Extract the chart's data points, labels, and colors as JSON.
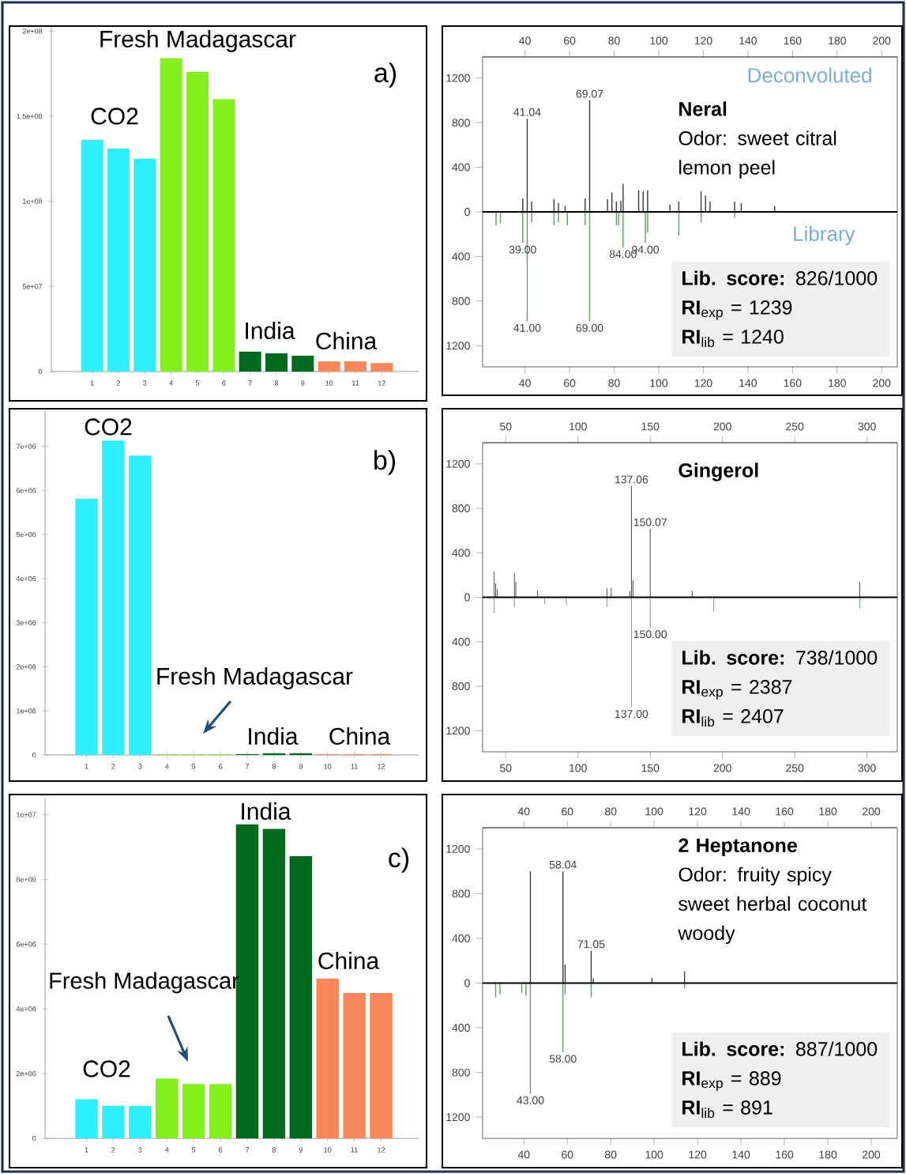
{
  "chart_data": [
    {
      "type": "bar",
      "categories": [
        "1",
        "2",
        "3",
        "4",
        "5",
        "6",
        "7",
        "8",
        "9",
        "10",
        "11",
        "12"
      ],
      "values": [
        136000000,
        131000000,
        125000000,
        184000000,
        176000000,
        160000000,
        11700000,
        10700000,
        9300000,
        6000000,
        6000000,
        5000000
      ],
      "colors": [
        "#2ef0ff",
        "#2ef0ff",
        "#2ef0ff",
        "#84f01e",
        "#84f01e",
        "#84f01e",
        "#006a1e",
        "#006a1e",
        "#006a1e",
        "#f9875a",
        "#f9875a",
        "#f9875a"
      ],
      "ylim": [
        0,
        202000000
      ],
      "yticks": [
        0,
        {
          "value": 50000000,
          "label": "5e+07"
        },
        {
          "value": 100000000,
          "label": "1e+08"
        },
        {
          "value": 150000000,
          "label": "1.5e+08"
        },
        {
          "value": 200000000,
          "label": "2e+08"
        }
      ],
      "annotations": [
        "Fresh Madagascar",
        "CO2",
        "India",
        "China",
        "a)"
      ]
    },
    {
      "type": "bar",
      "series": [
        {
          "color": "#3a3a3a",
          "x": [
            39,
            41,
            43,
            53,
            55,
            58,
            67,
            69,
            77,
            79,
            81,
            83,
            84,
            91,
            93,
            95,
            105,
            109,
            119,
            121,
            123,
            134,
            137,
            152
          ],
          "values": [
            120,
            836,
            93,
            114,
            80,
            53,
            120,
            1000,
            114,
            173,
            93,
            100,
            252,
            194,
            186,
            194,
            66,
            93,
            186,
            146,
            93,
            93,
            80,
            53
          ]
        },
        {
          "color": "#5e9e5e",
          "x": [
            27,
            29,
            39,
            41,
            43,
            53,
            55,
            59,
            67,
            69,
            81,
            82,
            84,
            94,
            95,
            109,
            119,
            134
          ],
          "values": [
            -120,
            -100,
            -279,
            -982,
            -93,
            -120,
            -93,
            -120,
            -120,
            -982,
            -120,
            -120,
            -319,
            -279,
            -186,
            -212,
            -93,
            -53
          ]
        }
      ],
      "xlim": [
        21,
        207
      ],
      "xticks": [
        40,
        60,
        80,
        100,
        120,
        140,
        160,
        180,
        200
      ],
      "x2lim": [
        21,
        207
      ],
      "x2ticks": [
        40,
        60,
        80,
        100,
        120,
        140,
        160,
        180,
        200
      ],
      "ylim": [
        -1390,
        1390
      ],
      "yticks": [
        {
          "value": -1200,
          "label": "1200"
        },
        {
          "value": -800,
          "label": "800"
        },
        {
          "value": -400,
          "label": "400"
        },
        0,
        400,
        800,
        1200
      ],
      "ref_lines": [
        {
          "axis": "y",
          "value": 0,
          "color": "#000000"
        }
      ],
      "annotations": [
        {
          "text": "41.04",
          "x": 41,
          "y": 836
        },
        {
          "text": "69.07",
          "x": 69,
          "y": 1000
        },
        {
          "text": "39.00",
          "x": 39,
          "y": -279
        },
        {
          "text": "84.00",
          "x": 84,
          "y": -319
        },
        {
          "text": "94.00",
          "x": 94,
          "y": -279
        },
        {
          "text": "41.00",
          "x": 41,
          "y": -982
        },
        {
          "text": "69.00",
          "x": 69,
          "y": -982
        },
        "Deconvoluted",
        "Library",
        "Neral",
        "Odor: sweet citral lemon peel",
        "**Lib. score:** 826/1000",
        "**RI**$_{exp}$ = 1239",
        "**RI**$_{lib}$ = 1240"
      ]
    },
    {
      "type": "bar",
      "categories": [
        "1",
        "2",
        "3",
        "4",
        "5",
        "6",
        "7",
        "8",
        "9",
        "10",
        "11",
        "12"
      ],
      "values": [
        5810000,
        7130000,
        6790000,
        20000,
        20000,
        20000,
        20000,
        40000,
        40000,
        20000,
        20000,
        20000
      ],
      "colors": [
        "#2ef0ff",
        "#2ef0ff",
        "#2ef0ff",
        "#84f01e",
        "#84f01e",
        "#84f01e",
        "#006a1e",
        "#006a1e",
        "#006a1e",
        "#f9875a",
        "#f9875a",
        "#f9875a"
      ],
      "ylim": [
        0,
        7800000
      ],
      "yticks": [
        0,
        {
          "value": 1000000,
          "label": "1e+06"
        },
        {
          "value": 2000000,
          "label": "2e+06"
        },
        {
          "value": 3000000,
          "label": "3e+06"
        },
        {
          "value": 4000000,
          "label": "4e+06"
        },
        {
          "value": 5000000,
          "label": "5e+06"
        },
        {
          "value": 6000000,
          "label": "6e+06"
        },
        {
          "value": 7000000,
          "label": "7e+06"
        }
      ],
      "annotations": [
        "CO2",
        "Fresh Madagascar",
        "India",
        "China",
        "b)"
      ]
    },
    {
      "type": "bar",
      "series": [
        {
          "color": "#3a3a3a",
          "x": [
            42,
            43,
            44,
            56,
            57,
            72,
            120,
            123,
            136,
            137,
            138,
            150,
            151,
            179,
            295
          ],
          "values": [
            231,
            125,
            72,
            218,
            138,
            58,
            80,
            85,
            58,
            1000,
            151,
            616,
            null,
            58,
            138
          ]
        },
        {
          "color": "#5e9e5e",
          "x": [
            42,
            56,
            77,
            92,
            120,
            122,
            137,
            150,
            194,
            295
          ],
          "values": [
            -141,
            -88,
            -61,
            -69,
            -88,
            null,
            -990,
            -273,
            -127,
            -101
          ]
        }
      ],
      "xlim": [
        34,
        321
      ],
      "xticks": [
        50,
        100,
        150,
        200,
        250,
        300
      ],
      "x2lim": [
        34,
        321
      ],
      "x2ticks": [
        50,
        100,
        150,
        200,
        250,
        300
      ],
      "ylim": [
        -1390,
        1390
      ],
      "yticks": [
        {
          "value": -1200,
          "label": "1200"
        },
        {
          "value": -800,
          "label": "800"
        },
        {
          "value": -400,
          "label": "400"
        },
        0,
        400,
        800,
        1200
      ],
      "ref_lines": [
        {
          "axis": "y",
          "value": 0,
          "color": "#000000"
        }
      ],
      "annotations": [
        {
          "text": "137.06",
          "x": 137,
          "y": 1000
        },
        {
          "text": "150.07",
          "x": 150,
          "y": 616
        },
        {
          "text": "150.00",
          "x": 150,
          "y": -273
        },
        {
          "text": "137.00",
          "x": 137,
          "y": -990
        },
        "Gingerol",
        "**Lib. score:** 738/1000",
        "**RI**$_{exp}$ = 2387",
        "**RI**$_{lib}$ = 2407"
      ]
    },
    {
      "type": "bar",
      "categories": [
        "1",
        "2",
        "3",
        "4",
        "5",
        "6",
        "7",
        "8",
        "9",
        "10",
        "11",
        "12"
      ],
      "values": [
        1210000,
        1010000,
        1000000,
        1850000,
        1680000,
        1680000,
        9700000,
        9560000,
        8720000,
        4940000,
        4490000,
        4490000
      ],
      "colors": [
        "#2ef0ff",
        "#2ef0ff",
        "#2ef0ff",
        "#84f01e",
        "#84f01e",
        "#84f01e",
        "#006a1e",
        "#006a1e",
        "#006a1e",
        "#f9875a",
        "#f9875a",
        "#f9875a"
      ],
      "ylim": [
        0,
        10500000
      ],
      "yticks": [
        0,
        {
          "value": 2000000,
          "label": "2e+06"
        },
        {
          "value": 4000000,
          "label": "4e+06"
        },
        {
          "value": 6000000,
          "label": "6e+06"
        },
        {
          "value": 8000000,
          "label": "8e+06"
        },
        {
          "value": 10000000,
          "label": "1e+07"
        }
      ],
      "annotations": [
        "India",
        "China",
        "Fresh Madagascar",
        "CO2",
        "c)"
      ]
    },
    {
      "type": "bar",
      "series": [
        {
          "color": "#3a3a3a",
          "x": [
            43,
            58,
            59,
            71,
            72,
            99,
            114
          ],
          "values": [
            1000,
            1000,
            165,
            289,
            45,
            45,
            104
          ]
        },
        {
          "color": "#5e9e5e",
          "x": [
            27,
            29,
            39,
            41,
            43,
            55,
            58,
            59,
            71,
            114
          ],
          "values": [
            -127,
            -101,
            -88,
            -114,
            -990,
            null,
            -619,
            -101,
            -127,
            -48
          ]
        }
      ],
      "xlim": [
        21,
        212
      ],
      "xticks": [
        40,
        60,
        80,
        100,
        120,
        140,
        160,
        180,
        200
      ],
      "x2lim": [
        21,
        212
      ],
      "x2ticks": [
        40,
        60,
        80,
        100,
        120,
        140,
        160,
        180,
        200
      ],
      "ylim": [
        -1390,
        1390
      ],
      "yticks": [
        {
          "value": -1200,
          "label": "1200"
        },
        {
          "value": -800,
          "label": "800"
        },
        {
          "value": -400,
          "label": "400"
        },
        0,
        400,
        800,
        1200
      ],
      "ref_lines": [
        {
          "axis": "y",
          "value": 0,
          "color": "#000000"
        }
      ],
      "annotations": [
        {
          "text": "58.04",
          "x": 58,
          "y": 1000
        },
        {
          "text": "71.05",
          "x": 71,
          "y": 289
        },
        {
          "text": "58.00",
          "x": 58,
          "y": -619
        },
        {
          "text": "43.00",
          "x": 43,
          "y": -990
        },
        "2 Heptanone",
        "Odor: fruity spicy sweet herbal coconut woody",
        "**Lib. score:** 887/1000",
        "**RI**$_{exp}$ = 889",
        "**RI**$_{lib}$ = 891"
      ]
    }
  ]
}
